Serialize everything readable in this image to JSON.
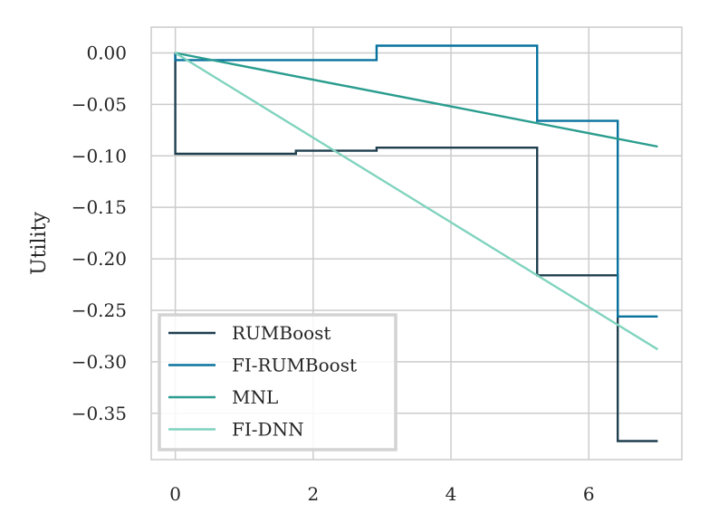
{
  "chart_data": {
    "type": "line",
    "title": "",
    "xlabel": "",
    "ylabel": "Utility",
    "xlim": [
      -0.35,
      7.35
    ],
    "ylim": [
      -0.395,
      0.025
    ],
    "x_ticks": [
      0,
      2,
      4,
      6
    ],
    "y_ticks": [
      0.0,
      -0.05,
      -0.1,
      -0.15,
      -0.2,
      -0.25,
      -0.3,
      -0.35
    ],
    "x_tick_labels": [
      "0",
      "2",
      "4",
      "6"
    ],
    "y_tick_labels": [
      "0.00",
      "−0.05",
      "−0.10",
      "−0.15",
      "−0.20",
      "−0.25",
      "−0.30",
      "−0.35"
    ],
    "grid": true,
    "legend_position": "lower-left",
    "series": [
      {
        "name": "RUMBoost",
        "color": "#1f3f4f",
        "step": true,
        "x": [
          0,
          0,
          1.75,
          1.75,
          2.92,
          2.92,
          5.25,
          5.25,
          6.42,
          6.42,
          7.0
        ],
        "y": [
          0.0,
          -0.098,
          -0.098,
          -0.095,
          -0.095,
          -0.092,
          -0.092,
          -0.216,
          -0.216,
          -0.377,
          -0.377
        ]
      },
      {
        "name": "FI-RUMBoost",
        "color": "#08729e",
        "step": true,
        "x": [
          0,
          0,
          2.92,
          2.92,
          5.25,
          5.25,
          6.42,
          6.42,
          7.0
        ],
        "y": [
          0.0,
          -0.007,
          -0.007,
          0.007,
          0.007,
          -0.066,
          -0.066,
          -0.256,
          -0.256
        ]
      },
      {
        "name": "MNL",
        "color": "#2a9d8f",
        "step": false,
        "x": [
          0,
          7.0
        ],
        "y": [
          0.0,
          -0.091
        ]
      },
      {
        "name": "FI-DNN",
        "color": "#7fd3bd",
        "step": false,
        "x": [
          0,
          7.0
        ],
        "y": [
          0.0,
          -0.288
        ]
      }
    ]
  }
}
